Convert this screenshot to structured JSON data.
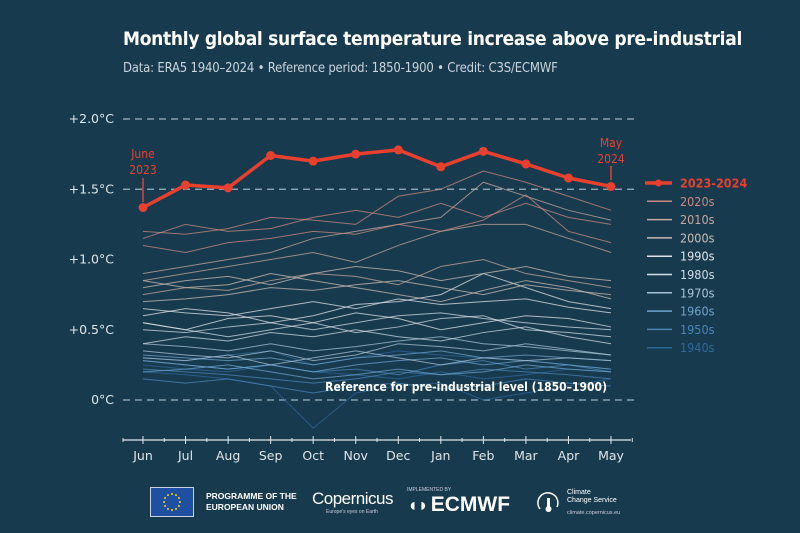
{
  "header": {
    "title": "Monthly global surface temperature increase above pre-industrial",
    "subtitle": "Data: ERA5 1940–2024 • Reference period: 1850-1900 • Credit: C3S/ECMWF"
  },
  "chart_data": {
    "type": "line",
    "title": "Monthly global surface temperature increase above pre-industrial",
    "categories": [
      "Jun",
      "Jul",
      "Aug",
      "Sep",
      "Oct",
      "Nov",
      "Dec",
      "Jan",
      "Feb",
      "Mar",
      "Apr",
      "May"
    ],
    "yticks": [
      {
        "v": 2.0,
        "label": "+2.0°C"
      },
      {
        "v": 1.5,
        "label": "+1.5°C"
      },
      {
        "v": 1.0,
        "label": "+1.0°C"
      },
      {
        "v": 0.5,
        "label": "+0.5°C"
      },
      {
        "v": 0,
        "label": "0°C"
      }
    ],
    "ylim": [
      -0.3,
      2.1
    ],
    "grid": "dashed at 0, +1.5 and +2.0",
    "legend_position": "right",
    "reference_label": "Reference for pre-industrial level (1850–1900)",
    "annotations": {
      "start": "June\n2023",
      "end": "May\n2024"
    },
    "highlight": {
      "name": "2023-2024",
      "color": "#e8402f",
      "values": [
        1.37,
        1.53,
        1.51,
        1.74,
        1.7,
        1.75,
        1.78,
        1.66,
        1.77,
        1.68,
        1.58,
        1.52
      ]
    },
    "series": [
      {
        "name": "2020s",
        "color": "#c98a80",
        "lines": [
          [
            1.2,
            1.18,
            1.22,
            1.3,
            1.28,
            1.25,
            1.45,
            1.5,
            1.63,
            1.55,
            1.45,
            1.35
          ],
          [
            1.15,
            1.25,
            1.2,
            1.22,
            1.3,
            1.35,
            1.3,
            1.4,
            1.3,
            1.4,
            1.3,
            1.25
          ],
          [
            1.1,
            1.05,
            1.12,
            1.15,
            1.2,
            1.18,
            1.25,
            1.2,
            1.28,
            1.46,
            1.2,
            1.12
          ]
        ]
      },
      {
        "name": "2010s",
        "color": "#c4a89c",
        "lines": [
          [
            0.9,
            0.95,
            1.0,
            1.05,
            1.15,
            1.2,
            1.25,
            1.3,
            1.55,
            1.45,
            1.35,
            1.28
          ],
          [
            0.85,
            0.9,
            0.95,
            1.0,
            1.05,
            0.98,
            1.1,
            1.2,
            1.25,
            1.25,
            1.15,
            1.05
          ],
          [
            0.75,
            0.8,
            0.78,
            0.85,
            0.9,
            0.88,
            0.82,
            0.95,
            1.0,
            0.9,
            0.85,
            0.8
          ]
        ]
      },
      {
        "name": "2000s",
        "color": "#c9bdb5",
        "lines": [
          [
            0.8,
            0.85,
            0.88,
            0.82,
            0.9,
            0.95,
            0.92,
            0.85,
            0.9,
            0.95,
            0.88,
            0.85
          ],
          [
            0.7,
            0.72,
            0.75,
            0.8,
            0.78,
            0.82,
            0.85,
            0.8,
            0.75,
            0.82,
            0.78,
            0.75
          ],
          [
            0.85,
            0.8,
            0.82,
            0.9,
            0.85,
            0.8,
            0.75,
            0.7,
            0.78,
            0.85,
            0.8,
            0.72
          ]
        ]
      },
      {
        "name": "1990s",
        "color": "#e0e4e8",
        "lines": [
          [
            0.6,
            0.65,
            0.62,
            0.55,
            0.6,
            0.68,
            0.7,
            0.75,
            0.9,
            0.8,
            0.7,
            0.65
          ],
          [
            0.55,
            0.5,
            0.58,
            0.6,
            0.55,
            0.62,
            0.58,
            0.5,
            0.55,
            0.6,
            0.58,
            0.52
          ],
          [
            0.65,
            0.62,
            0.6,
            0.65,
            0.7,
            0.65,
            0.72,
            0.68,
            0.7,
            0.72,
            0.66,
            0.62
          ]
        ]
      },
      {
        "name": "1980s",
        "color": "#d0dce6",
        "lines": [
          [
            0.5,
            0.48,
            0.52,
            0.55,
            0.5,
            0.55,
            0.6,
            0.62,
            0.58,
            0.55,
            0.52,
            0.5
          ],
          [
            0.4,
            0.45,
            0.42,
            0.48,
            0.45,
            0.5,
            0.45,
            0.42,
            0.48,
            0.52,
            0.45,
            0.4
          ],
          [
            0.55,
            0.5,
            0.45,
            0.5,
            0.55,
            0.48,
            0.52,
            0.58,
            0.6,
            0.5,
            0.48,
            0.45
          ]
        ]
      },
      {
        "name": "1970s",
        "color": "#a9c3d6",
        "lines": [
          [
            0.35,
            0.32,
            0.3,
            0.35,
            0.28,
            0.32,
            0.4,
            0.38,
            0.35,
            0.4,
            0.36,
            0.32
          ],
          [
            0.3,
            0.28,
            0.32,
            0.25,
            0.3,
            0.35,
            0.3,
            0.25,
            0.3,
            0.28,
            0.3,
            0.28
          ],
          [
            0.4,
            0.38,
            0.35,
            0.4,
            0.35,
            0.38,
            0.42,
            0.45,
            0.4,
            0.38,
            0.35,
            0.32
          ]
        ]
      },
      {
        "name": "1960s",
        "color": "#6fa3cb",
        "lines": [
          [
            0.28,
            0.25,
            0.22,
            0.25,
            0.2,
            0.25,
            0.28,
            0.3,
            0.25,
            0.28,
            0.25,
            0.22
          ],
          [
            0.2,
            0.22,
            0.25,
            0.2,
            0.15,
            0.18,
            0.22,
            0.18,
            0.2,
            0.25,
            0.22,
            0.2
          ],
          [
            0.32,
            0.3,
            0.28,
            0.3,
            0.25,
            0.3,
            0.32,
            0.35,
            0.3,
            0.32,
            0.3,
            0.28
          ]
        ]
      },
      {
        "name": "1950s",
        "color": "#4b86b8",
        "lines": [
          [
            0.22,
            0.2,
            0.18,
            0.15,
            0.12,
            0.15,
            0.2,
            0.18,
            0.22,
            0.2,
            0.18,
            0.15
          ],
          [
            0.15,
            0.12,
            0.15,
            0.1,
            0.05,
            0.1,
            0.12,
            0.08,
            0.1,
            0.15,
            0.12,
            0.1
          ],
          [
            0.28,
            0.25,
            0.22,
            0.25,
            0.2,
            0.22,
            0.18,
            0.25,
            0.28,
            0.22,
            0.25,
            0.2
          ]
        ]
      },
      {
        "name": "1940s",
        "color": "#2f679c",
        "lines": [
          [
            0.3,
            0.28,
            0.32,
            0.35,
            0.25,
            0.3,
            0.35,
            0.32,
            0.3,
            0.28,
            0.25,
            0.22
          ],
          [
            0.2,
            0.18,
            0.15,
            0.1,
            -0.2,
            0.05,
            0.1,
            0.12,
            0.0,
            0.05,
            0.1,
            0.15
          ],
          [
            0.25,
            0.22,
            0.2,
            0.25,
            0.2,
            0.18,
            0.15,
            0.2,
            0.15,
            0.18,
            0.22,
            0.2
          ]
        ]
      }
    ]
  },
  "footer": {
    "eu": "PROGRAMME OF THE\nEUROPEAN UNION",
    "copernicus": "Copernicus",
    "copernicus_tagline": "Europe's eyes on Earth",
    "implemented_by": "IMPLEMENTED BY",
    "ecmwf": "ECMWF",
    "c3s": "Climate\nChange Service",
    "c3s_url": "climate.copernicus.eu"
  }
}
